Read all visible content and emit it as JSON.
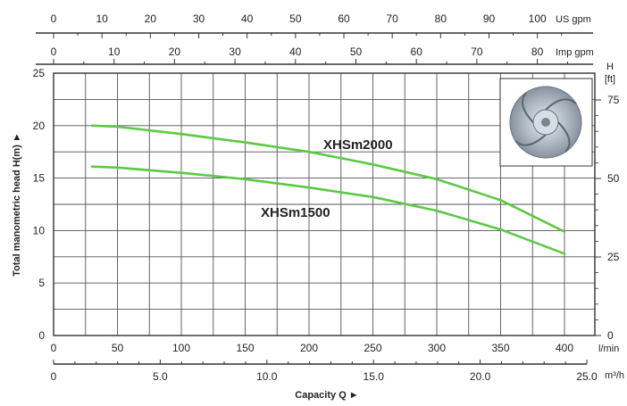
{
  "chart_data": {
    "type": "line",
    "title": "",
    "series": [
      {
        "name": "XHSm2000",
        "x": [
          30,
          50,
          100,
          150,
          200,
          250,
          300,
          350,
          400
        ],
        "y": [
          20,
          19.9,
          19.2,
          18.4,
          17.5,
          16.3,
          14.9,
          12.9,
          9.9
        ]
      },
      {
        "name": "XHSm1500",
        "x": [
          30,
          50,
          100,
          150,
          200,
          250,
          300,
          350,
          400
        ],
        "y": [
          16.1,
          16,
          15.5,
          14.9,
          14.1,
          13.2,
          11.9,
          10.1,
          7.8
        ]
      }
    ],
    "series_color": "#5cc945",
    "x_primary": {
      "label": "l/min",
      "range": [
        0,
        400
      ],
      "ticks": [
        "0",
        "50",
        "100",
        "150",
        "200",
        "250",
        "300",
        "350",
        "400"
      ]
    },
    "x_m3h": {
      "label": "Capacity Q",
      "unit": "m³/h",
      "range": [
        0,
        25
      ],
      "ticks": [
        "0",
        "5.0",
        "10.0",
        "15.0",
        "20.0",
        "25.0"
      ]
    },
    "x_usgpm": {
      "unit": "US gpm",
      "ticks": [
        "0",
        "10",
        "20",
        "30",
        "40",
        "50",
        "60",
        "70",
        "80",
        "90",
        "100"
      ]
    },
    "x_impgpm": {
      "unit": "Imp gpm",
      "ticks": [
        "0",
        "10",
        "20",
        "30",
        "40",
        "50",
        "60",
        "70",
        "80"
      ]
    },
    "y_primary": {
      "label": "Total manometric head H(m)",
      "range": [
        0,
        25
      ],
      "ticks": [
        "0",
        "5",
        "10",
        "15",
        "20",
        "25"
      ]
    },
    "y_secondary": {
      "label": "H",
      "unit": "[ft]",
      "ticks": [
        "0",
        "25",
        "50",
        "75"
      ]
    },
    "grid": true,
    "arrow_glyph": "►",
    "image_icon": "impeller-photo"
  }
}
